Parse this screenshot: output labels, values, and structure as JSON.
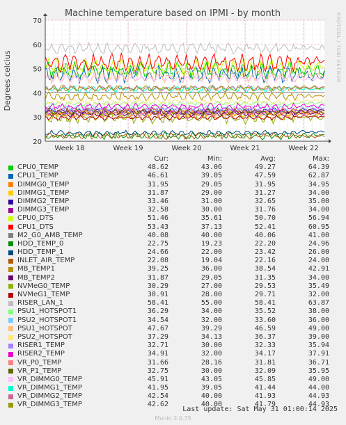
{
  "chart_data": {
    "type": "line",
    "title": "Machine temperature based on IPMI - by month",
    "ylabel": "Degrees celcius",
    "ylim": [
      20,
      70
    ],
    "yticks": [
      20,
      30,
      40,
      50,
      60,
      70
    ],
    "xticks": [
      "Week 18",
      "Week 19",
      "Week 20",
      "Week 21",
      "Week 22"
    ],
    "grid": true,
    "side_text": "RRDTOOL / TOBI OETIKER",
    "columns": [
      "Cur:",
      "Min:",
      "Avg:",
      "Max:"
    ],
    "series": [
      {
        "name": "CPU0_TEMP",
        "color": "#00cc00",
        "cur": "48.62",
        "min": "43.06",
        "avg": "49.27",
        "max": "64.39"
      },
      {
        "name": "CPU1_TEMP",
        "color": "#0066b3",
        "cur": "46.61",
        "min": "39.05",
        "avg": "47.59",
        "max": "62.87"
      },
      {
        "name": "DIMMG0_TEMP",
        "color": "#ff8000",
        "cur": "31.95",
        "min": "29.05",
        "avg": "31.95",
        "max": "34.95"
      },
      {
        "name": "DIMMG1_TEMP",
        "color": "#ffcc00",
        "cur": "31.87",
        "min": "29.00",
        "avg": "31.27",
        "max": "34.00"
      },
      {
        "name": "DIMMG2_TEMP",
        "color": "#330099",
        "cur": "33.46",
        "min": "31.00",
        "avg": "32.65",
        "max": "35.00"
      },
      {
        "name": "DIMMG3_TEMP",
        "color": "#990099",
        "cur": "32.58",
        "min": "30.00",
        "avg": "31.76",
        "max": "34.00"
      },
      {
        "name": "CPU0_DTS",
        "color": "#ccff00",
        "cur": "51.46",
        "min": "35.61",
        "avg": "50.70",
        "max": "56.94"
      },
      {
        "name": "CPU1_DTS",
        "color": "#ff0000",
        "cur": "53.43",
        "min": "37.13",
        "avg": "52.41",
        "max": "60.95"
      },
      {
        "name": "M2_G0_AMB_TEMP",
        "color": "#808080",
        "cur": "40.08",
        "min": "40.00",
        "avg": "40.06",
        "max": "41.00"
      },
      {
        "name": "HDD_TEMP_0",
        "color": "#008f00",
        "cur": "22.75",
        "min": "19.23",
        "avg": "22.20",
        "max": "24.96"
      },
      {
        "name": "HDD_TEMP_1",
        "color": "#00487d",
        "cur": "24.66",
        "min": "22.00",
        "avg": "23.42",
        "max": "26.00"
      },
      {
        "name": "INLET_AIR_TEMP",
        "color": "#b35a00",
        "cur": "22.08",
        "min": "19.04",
        "avg": "22.16",
        "max": "24.00"
      },
      {
        "name": "MB_TEMP1",
        "color": "#b38f00",
        "cur": "39.25",
        "min": "36.00",
        "avg": "38.54",
        "max": "42.91"
      },
      {
        "name": "MB_TEMP2",
        "color": "#6b006b",
        "cur": "31.87",
        "min": "29.05",
        "avg": "31.35",
        "max": "34.00"
      },
      {
        "name": "NVMeG0_TEMP",
        "color": "#8fb300",
        "cur": "30.29",
        "min": "27.00",
        "avg": "29.53",
        "max": "35.49"
      },
      {
        "name": "NVMeG1_TEMP",
        "color": "#b30000",
        "cur": "30.91",
        "min": "28.00",
        "avg": "29.71",
        "max": "32.00"
      },
      {
        "name": "RISER_LAN_1",
        "color": "#bebebe",
        "cur": "58.41",
        "min": "55.00",
        "avg": "58.41",
        "max": "63.87"
      },
      {
        "name": "PSU1_HOTSPOT1",
        "color": "#80ff80",
        "cur": "36.29",
        "min": "34.00",
        "avg": "35.52",
        "max": "38.00"
      },
      {
        "name": "PSU2_HOTSPOT1",
        "color": "#80c9ff",
        "cur": "34.54",
        "min": "32.00",
        "avg": "33.60",
        "max": "36.00"
      },
      {
        "name": "PSU1_HOTSPOT",
        "color": "#ffc080",
        "cur": "47.67",
        "min": "39.29",
        "avg": "46.59",
        "max": "49.00"
      },
      {
        "name": "PSU2_HOTSPOT",
        "color": "#ffe680",
        "cur": "37.29",
        "min": "34.13",
        "avg": "36.37",
        "max": "39.00"
      },
      {
        "name": "RISER1_TEMP",
        "color": "#aa80ff",
        "cur": "32.71",
        "min": "30.00",
        "avg": "32.33",
        "max": "35.94"
      },
      {
        "name": "RISER2_TEMP",
        "color": "#ee00cc",
        "cur": "34.91",
        "min": "32.00",
        "avg": "34.17",
        "max": "37.91"
      },
      {
        "name": "VR_P0_TEMP",
        "color": "#ff8080",
        "cur": "31.66",
        "min": "28.16",
        "avg": "31.81",
        "max": "36.71"
      },
      {
        "name": "VR_P1_TEMP",
        "color": "#666600",
        "cur": "32.75",
        "min": "30.00",
        "avg": "32.09",
        "max": "35.95"
      },
      {
        "name": "VR_DIMMG0_TEMP",
        "color": "#ffbfff",
        "cur": "45.91",
        "min": "43.05",
        "avg": "45.85",
        "max": "49.00"
      },
      {
        "name": "VR_DIMMG1_TEMP",
        "color": "#00ffcc",
        "cur": "41.95",
        "min": "39.05",
        "avg": "41.44",
        "max": "44.00"
      },
      {
        "name": "VR_DIMMG2_TEMP",
        "color": "#cc6699",
        "cur": "42.54",
        "min": "40.00",
        "avg": "41.93",
        "max": "44.93"
      },
      {
        "name": "VR_DIMMG3_TEMP",
        "color": "#999900",
        "cur": "42.62",
        "min": "40.00",
        "avg": "41.79",
        "max": "44.93"
      }
    ]
  },
  "last_update": "Last update: Sat May 31 01:00:14 2025",
  "footer": "Munin 2.0.75"
}
